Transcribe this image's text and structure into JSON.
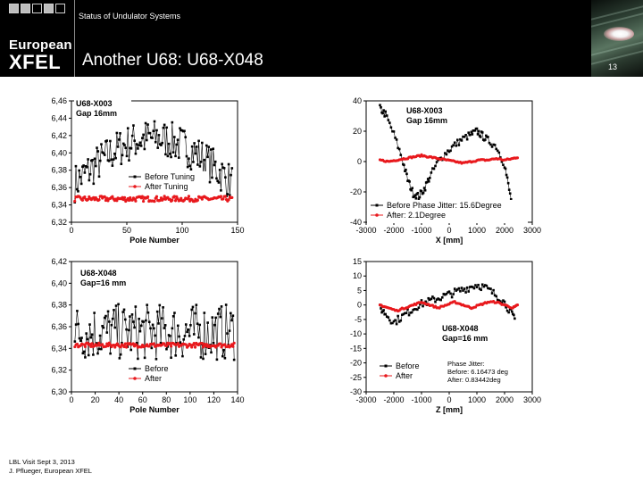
{
  "header": {
    "status_text": "Status of Undulator Systems",
    "brand_line1": "European",
    "brand_line2": "XFEL",
    "slide_title": "Another U68: U68-X048",
    "page_number": "13"
  },
  "footer": {
    "line1": "LBL Visit Sept 3, 2013",
    "line2": "J. Pflueger, European XFEL"
  },
  "colors": {
    "header_bg": "#000000",
    "before_series": "#000000",
    "after_series": "#e8191d"
  },
  "chart_data": [
    {
      "id": "x003-kvalue",
      "type": "scatter",
      "title": "U68-X003",
      "subtitle": "Gap 16mm",
      "xlabel": "Pole Number",
      "ylabel": "",
      "xlim": [
        0,
        150
      ],
      "ylim": [
        6.32,
        6.46
      ],
      "x_ticks": [
        "0",
        "50",
        "100",
        "150"
      ],
      "y_ticks": [
        "6,32",
        "6,34",
        "6,36",
        "6,38",
        "6,40",
        "6,42",
        "6,44",
        "6,46"
      ],
      "legend": [
        "Before Tuning",
        "After Tuning"
      ],
      "series": [
        {
          "name": "Before Tuning",
          "shape": "arch",
          "x_range": [
            3,
            145
          ],
          "center": 6.378,
          "amplitude": 0.052,
          "noise": 0.022
        },
        {
          "name": "After Tuning",
          "shape": "flat",
          "x_range": [
            3,
            145
          ],
          "center": 6.347,
          "amplitude": 0,
          "noise": 0.003
        }
      ]
    },
    {
      "id": "x003-phase",
      "type": "line",
      "title": "U68-X003",
      "subtitle": "Gap 16mm",
      "xlabel": "X [mm]",
      "ylabel": "",
      "xlim": [
        -3000,
        3000
      ],
      "ylim": [
        -40,
        40
      ],
      "x_ticks": [
        "-3000",
        "-2000",
        "-1000",
        "0",
        "1000",
        "2000",
        "3000"
      ],
      "y_ticks": [
        "-40",
        "-20",
        "0",
        "20",
        "40"
      ],
      "legend": [
        "Before Phase Jitter: 15.6Degree",
        "After:        2.1Degree"
      ],
      "series": [
        {
          "name": "Before",
          "x": [
            -2500,
            -2300,
            -2000,
            -1700,
            -1500,
            -1300,
            -1100,
            -900,
            -700,
            -400,
            -100,
            200,
            500,
            800,
            1000,
            1200,
            1400,
            1700,
            2000,
            2200,
            2400
          ],
          "y": [
            35,
            31,
            18,
            2,
            -12,
            -21,
            -23,
            -18,
            -10,
            0,
            6,
            11,
            15,
            18,
            20,
            17,
            14,
            10,
            -2,
            -22,
            -36
          ]
        },
        {
          "name": "After",
          "x": [
            -2500,
            -2200,
            -1900,
            -1600,
            -1300,
            -1000,
            -700,
            -400,
            -100,
            200,
            500,
            800,
            1100,
            1400,
            1700,
            2000,
            2300,
            2500
          ],
          "y": [
            1,
            0,
            1,
            2,
            3,
            4,
            3,
            2,
            1,
            0,
            -1,
            0,
            1,
            1,
            2,
            1,
            2,
            3
          ]
        }
      ]
    },
    {
      "id": "x048-kvalue",
      "type": "scatter",
      "title": "U68-X048",
      "subtitle": "Gap=16 mm",
      "xlabel": "Pole Number",
      "ylabel": "",
      "xlim": [
        0,
        145
      ],
      "ylim": [
        6.3,
        6.42
      ],
      "x_ticks": [
        "0",
        "20",
        "40",
        "60",
        "80",
        "100",
        "120",
        "140"
      ],
      "y_ticks": [
        "6,30",
        "6,32",
        "6,34",
        "6,36",
        "6,38",
        "6,40",
        "6,42"
      ],
      "legend": [
        "Before",
        "After"
      ],
      "series": [
        {
          "name": "Before",
          "shape": "flat",
          "x_range": [
            3,
            142
          ],
          "center": 6.355,
          "amplitude": 0,
          "noise": 0.026
        },
        {
          "name": "After",
          "shape": "flat",
          "x_range": [
            3,
            142
          ],
          "center": 6.343,
          "amplitude": 0,
          "noise": 0.002
        }
      ]
    },
    {
      "id": "x048-phase",
      "type": "line",
      "title": "U68-X048",
      "subtitle": "Gap=16 mm",
      "xlabel": "Z [mm]",
      "ylabel": "",
      "xlim": [
        -3000,
        3000
      ],
      "ylim": [
        -30,
        15
      ],
      "x_ticks": [
        "-3000",
        "-2000",
        "-1000",
        "0",
        "1000",
        "2000",
        "3000"
      ],
      "y_ticks": [
        "-30",
        "-25",
        "-20",
        "-15",
        "-10",
        "-5",
        "0",
        "5",
        "10",
        "15"
      ],
      "legend": [
        "Before",
        "After"
      ],
      "annotation": [
        "Phase Jitter:",
        "Before: 6.16473 deg",
        "After:  0.83442deg"
      ],
      "series": [
        {
          "name": "Before",
          "x": [
            -2500,
            -2300,
            -2000,
            -1700,
            -1400,
            -1100,
            -800,
            -500,
            -200,
            100,
            400,
            700,
            1000,
            1300,
            1600,
            1900,
            2200,
            2400
          ],
          "y": [
            -1,
            -3,
            -6,
            -4,
            -2,
            0,
            1,
            2,
            3,
            4,
            5,
            6,
            7,
            6,
            4,
            2,
            -2,
            -6
          ]
        },
        {
          "name": "After",
          "x": [
            -2500,
            -2200,
            -1900,
            -1600,
            -1300,
            -1000,
            -700,
            -400,
            -100,
            200,
            500,
            800,
            1100,
            1400,
            1700,
            2000,
            2300,
            2500
          ],
          "y": [
            0,
            -1,
            -2,
            -1,
            0,
            1,
            0,
            -1,
            0,
            1,
            0,
            -1,
            0,
            1,
            1,
            0,
            -1,
            0
          ]
        }
      ]
    }
  ]
}
